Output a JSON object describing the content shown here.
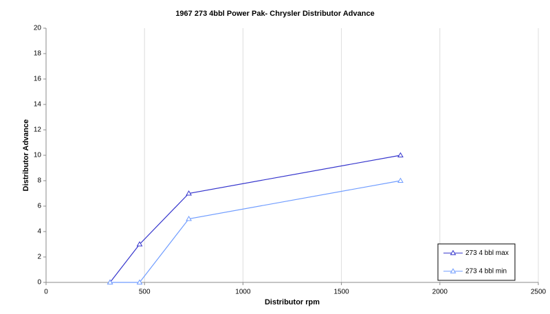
{
  "chart_data": {
    "type": "line",
    "title": "1967 273 4bbl Power Pak- Chrysler Distributor Advance",
    "x_label": "Distributor rpm",
    "y_label": "Distributor Advance",
    "x": [
      325,
      475,
      725,
      1800
    ],
    "series": [
      {
        "name": "273 4 bbl max",
        "color": "#3333cc",
        "values": [
          0,
          3,
          7,
          10
        ]
      },
      {
        "name": "273 4 bbl min",
        "color": "#6f9cff",
        "values": [
          0,
          0,
          5,
          8
        ]
      }
    ],
    "xlim": [
      0,
      2500
    ],
    "xticks": [
      0,
      500,
      1000,
      1500,
      2000,
      2500
    ],
    "ylim": [
      0,
      20
    ],
    "yticks": [
      0,
      2,
      4,
      6,
      8,
      10,
      12,
      14,
      16,
      18,
      20
    ],
    "grid": "x",
    "legend": "lower right"
  }
}
